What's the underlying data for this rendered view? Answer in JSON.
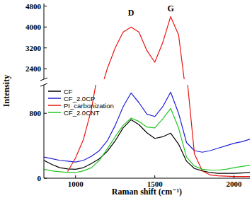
{
  "chart_data": {
    "type": "line",
    "x_label": "Raman shift (cm⁻¹)",
    "y_label": "Intensity",
    "x": [
      800,
      850,
      900,
      950,
      1000,
      1050,
      1100,
      1150,
      1200,
      1250,
      1300,
      1350,
      1400,
      1450,
      1500,
      1550,
      1600,
      1650,
      1700,
      1750,
      1800,
      1850,
      1900,
      1950,
      2000,
      2050,
      2100
    ],
    "series": [
      {
        "name": "CF",
        "color": "#000000",
        "values": [
          220,
          170,
          130,
          115,
          110,
          130,
          180,
          240,
          330,
          460,
          620,
          720,
          660,
          560,
          490,
          510,
          555,
          420,
          210,
          120,
          90,
          70,
          60,
          60,
          60,
          65,
          70
        ]
      },
      {
        "name": "CF_2.0CP",
        "color": "#1f1fd8",
        "values": [
          260,
          240,
          220,
          210,
          200,
          220,
          270,
          340,
          460,
          650,
          880,
          1050,
          930,
          790,
          760,
          880,
          1060,
          800,
          440,
          340,
          320,
          340,
          370,
          400,
          430,
          450,
          480
        ]
      },
      {
        "name": "PI_carbonization",
        "color": "#e8140f",
        "values": [
          null,
          null,
          null,
          80,
          250,
          480,
          850,
          1400,
          2400,
          3200,
          3800,
          4000,
          3800,
          3100,
          2650,
          3400,
          4400,
          3700,
          1300,
          300,
          90,
          40,
          30,
          25,
          20,
          20,
          20
        ]
      },
      {
        "name": "CF_2.0CNT",
        "color": "#22c722",
        "values": [
          110,
          90,
          80,
          70,
          70,
          90,
          130,
          220,
          360,
          510,
          650,
          740,
          700,
          630,
          620,
          730,
          860,
          620,
          260,
          150,
          110,
          100,
          100,
          110,
          130,
          145,
          160
        ]
      }
    ],
    "xlim": [
      800,
      2100
    ],
    "xticks": [
      1000,
      1500,
      2000
    ],
    "ylim": [
      0,
      4900
    ],
    "y_break": [
      1150,
      2000
    ],
    "yticks": [
      0,
      800,
      2400,
      3200,
      4000,
      4800
    ],
    "annotations": [
      {
        "text": "D",
        "x": 1350,
        "y": 4450
      },
      {
        "text": "G",
        "x": 1600,
        "y": 4600
      }
    ],
    "legend": "upper left",
    "grid": false
  }
}
